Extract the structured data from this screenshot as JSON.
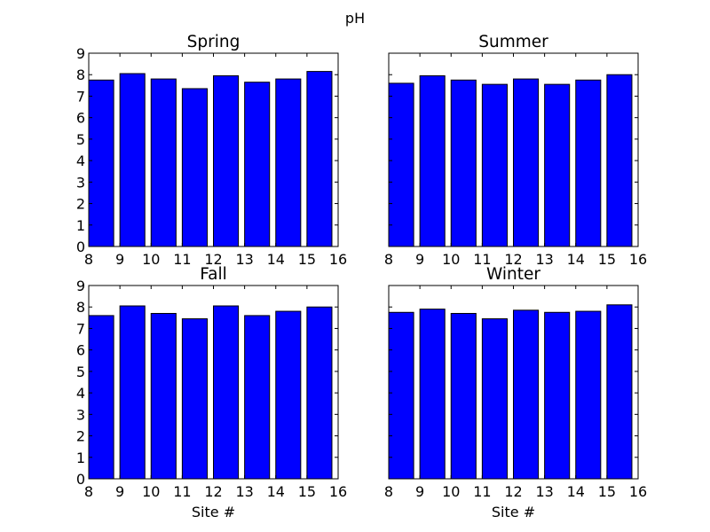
{
  "suptitle": "pH",
  "bar_color": "#0000ff",
  "chart_data": [
    {
      "type": "bar",
      "title": "Spring",
      "xlabel": "",
      "ylabel": "",
      "x": [
        8,
        9,
        10,
        11,
        12,
        13,
        14,
        15
      ],
      "values": [
        7.75,
        8.05,
        7.8,
        7.35,
        7.95,
        7.65,
        7.8,
        8.15
      ],
      "xlim": [
        8,
        16
      ],
      "ylim": [
        0,
        9
      ],
      "xticks": [
        "8",
        "9",
        "10",
        "11",
        "12",
        "13",
        "14",
        "15",
        "16"
      ],
      "yticks": [
        "0",
        "1",
        "2",
        "3",
        "4",
        "5",
        "6",
        "7",
        "8",
        "9"
      ],
      "show_ytick_labels": true,
      "grid": false
    },
    {
      "type": "bar",
      "title": "Summer",
      "xlabel": "",
      "ylabel": "",
      "x": [
        8,
        9,
        10,
        11,
        12,
        13,
        14,
        15
      ],
      "values": [
        7.6,
        7.95,
        7.75,
        7.55,
        7.8,
        7.55,
        7.75,
        8.0
      ],
      "xlim": [
        8,
        16
      ],
      "ylim": [
        0,
        9
      ],
      "xticks": [
        "8",
        "9",
        "10",
        "11",
        "12",
        "13",
        "14",
        "15",
        "16"
      ],
      "yticks": [
        "0",
        "1",
        "2",
        "3",
        "4",
        "5",
        "6",
        "7",
        "8",
        "9"
      ],
      "show_ytick_labels": false,
      "grid": false
    },
    {
      "type": "bar",
      "title": "Fall",
      "xlabel": "Site #",
      "ylabel": "",
      "x": [
        8,
        9,
        10,
        11,
        12,
        13,
        14,
        15
      ],
      "values": [
        7.6,
        8.05,
        7.7,
        7.45,
        8.05,
        7.6,
        7.8,
        8.0
      ],
      "xlim": [
        8,
        16
      ],
      "ylim": [
        0,
        9
      ],
      "xticks": [
        "8",
        "9",
        "10",
        "11",
        "12",
        "13",
        "14",
        "15",
        "16"
      ],
      "yticks": [
        "0",
        "1",
        "2",
        "3",
        "4",
        "5",
        "6",
        "7",
        "8",
        "9"
      ],
      "show_ytick_labels": true,
      "grid": false
    },
    {
      "type": "bar",
      "title": "Winter",
      "xlabel": "Site #",
      "ylabel": "",
      "x": [
        8,
        9,
        10,
        11,
        12,
        13,
        14,
        15
      ],
      "values": [
        7.75,
        7.9,
        7.7,
        7.45,
        7.85,
        7.75,
        7.8,
        8.1
      ],
      "xlim": [
        8,
        16
      ],
      "ylim": [
        0,
        9
      ],
      "xticks": [
        "8",
        "9",
        "10",
        "11",
        "12",
        "13",
        "14",
        "15",
        "16"
      ],
      "yticks": [
        "0",
        "1",
        "2",
        "3",
        "4",
        "5",
        "6",
        "7",
        "8",
        "9"
      ],
      "show_ytick_labels": false,
      "grid": false
    }
  ]
}
